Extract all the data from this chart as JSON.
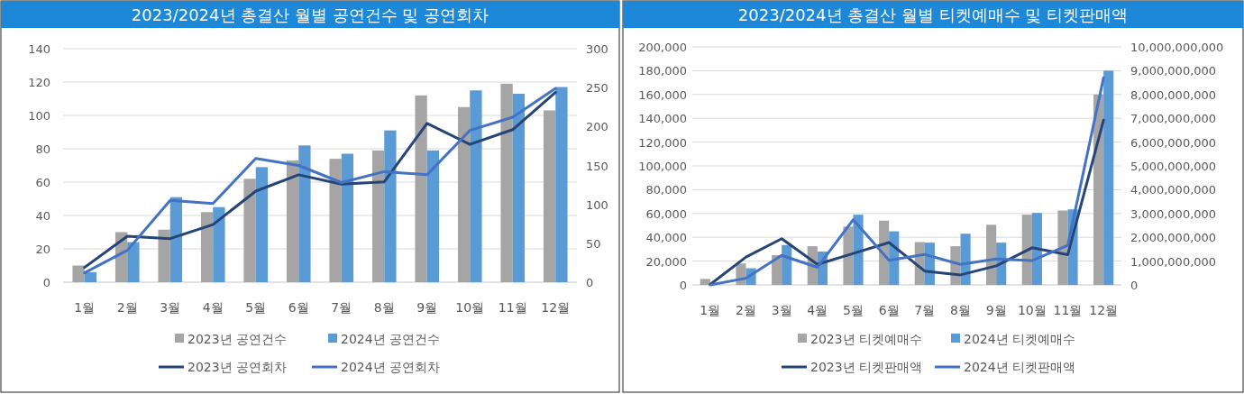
{
  "chart_data": [
    {
      "type": "bar",
      "title": "2023/2024년 총결산 월별 공연건수 및 공연회차",
      "categories": [
        "1월",
        "2월",
        "3월",
        "4월",
        "5월",
        "6월",
        "7월",
        "8월",
        "9월",
        "10월",
        "11월",
        "12월"
      ],
      "series": [
        {
          "name": "2023년 공연건수",
          "color": "#a5a5a5",
          "values": [
            10,
            30,
            31.5,
            42,
            62,
            73,
            74,
            79,
            112,
            105,
            119,
            103
          ]
        },
        {
          "name": "2024년 공연건수",
          "color": "#5b9bd5",
          "values": [
            6,
            24,
            51,
            45,
            69,
            82,
            77,
            91,
            79,
            115,
            113,
            117
          ]
        },
        {
          "name": "2023년 공연회차",
          "type": "line",
          "axis": "y2",
          "color": "#264478",
          "values": [
            19,
            59,
            56,
            74,
            117,
            138,
            126,
            129,
            204,
            177,
            196,
            244
          ]
        },
        {
          "name": "2024년 공연회차",
          "type": "line",
          "axis": "y2",
          "color": "#4472c4",
          "values": [
            12,
            41,
            105,
            101,
            159,
            150,
            128,
            142,
            138,
            195,
            212,
            249
          ]
        }
      ],
      "ylim": [
        0,
        140
      ],
      "yticks": [
        0,
        20,
        40,
        60,
        80,
        100,
        120,
        140
      ],
      "y2lim": [
        0,
        300
      ],
      "y2ticks": [
        0,
        50,
        100,
        150,
        200,
        250,
        300
      ],
      "grid": "y",
      "legend": "bottom"
    },
    {
      "type": "bar",
      "title": "2023/2024년 총결산 월별 티켓예매수 및 티켓판매액",
      "categories": [
        "1월",
        "2월",
        "3월",
        "4월",
        "5월",
        "6월",
        "7월",
        "8월",
        "9월",
        "10월",
        "11월",
        "12월"
      ],
      "series": [
        {
          "name": "2023년 티켓예매수",
          "color": "#a5a5a5",
          "values": [
            5000,
            18000,
            25000,
            32500,
            49000,
            54000,
            36000,
            32500,
            50500,
            59000,
            62500,
            160000
          ]
        },
        {
          "name": "2024년 티켓예매수",
          "color": "#5b9bd5",
          "values": [
            null,
            14000,
            33500,
            28000,
            59000,
            45000,
            35500,
            43000,
            35500,
            60500,
            63500,
            180000
          ]
        },
        {
          "name": "2023년 티켓판매액",
          "type": "line",
          "axis": "y2",
          "color": "#264478",
          "values": [
            20000000,
            1170000000,
            1940000000,
            860000000,
            1320000000,
            1780000000,
            580000000,
            420000000,
            800000000,
            1560000000,
            1270000000,
            6920000000
          ]
        },
        {
          "name": "2024년 티켓판매액",
          "type": "line",
          "axis": "y2",
          "color": "#4472c4",
          "values": [
            0,
            280000000,
            1240000000,
            740000000,
            2740000000,
            1030000000,
            1280000000,
            860000000,
            1090000000,
            1020000000,
            1660000000,
            8700000000
          ]
        }
      ],
      "ylim": [
        0,
        200000
      ],
      "yticks": [
        {
          "value": 0,
          "label": "0"
        },
        {
          "value": 20000,
          "label": "20,000"
        },
        {
          "value": 40000,
          "label": "40,000"
        },
        {
          "value": 60000,
          "label": "60,000"
        },
        {
          "value": 80000,
          "label": "80,000"
        },
        {
          "value": 100000,
          "label": "100,000"
        },
        {
          "value": 120000,
          "label": "120,000"
        },
        {
          "value": 140000,
          "label": "140,000"
        },
        {
          "value": 160000,
          "label": "160,000"
        },
        {
          "value": 180000,
          "label": "180,000"
        },
        {
          "value": 200000,
          "label": "200,000"
        }
      ],
      "y2lim": [
        0,
        10000000000
      ],
      "y2ticks": [
        {
          "value": 0,
          "label": "0"
        },
        {
          "value": 1000000000,
          "label": "1,000,000,000"
        },
        {
          "value": 2000000000,
          "label": "2,000,000,000"
        },
        {
          "value": 3000000000,
          "label": "3,000,000,000"
        },
        {
          "value": 4000000000,
          "label": "4,000,000,000"
        },
        {
          "value": 5000000000,
          "label": "5,000,000,000"
        },
        {
          "value": 6000000000,
          "label": "6,000,000,000"
        },
        {
          "value": 7000000000,
          "label": "7,000,000,000"
        },
        {
          "value": 8000000000,
          "label": "8,000,000,000"
        },
        {
          "value": 9000000000,
          "label": "9,000,000,000"
        },
        {
          "value": 10000000000,
          "label": "10,000,000,000"
        }
      ],
      "grid": "y",
      "legend": "bottom"
    }
  ]
}
